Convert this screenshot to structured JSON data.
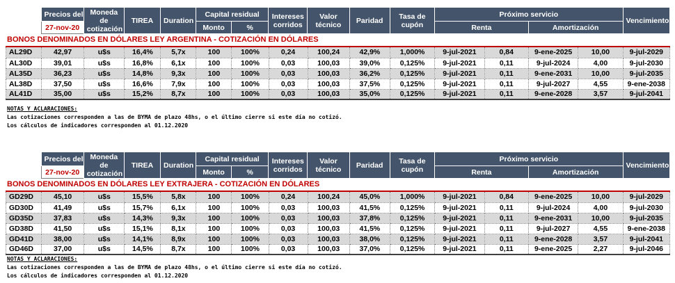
{
  "header": {
    "precios_del": "Precios del",
    "date": "27-nov-20",
    "moneda": "Moneda de cotización",
    "tirea": "TIREA",
    "duration": "Duration",
    "capital_residual": "Capital residual",
    "monto": "Monto",
    "pct": "%",
    "intereses_corridos": "Intereses corridos",
    "valor_tecnico": "Valor técnico",
    "paridad": "Paridad",
    "tasa_cupon": "Tasa de cupón",
    "proximo_servicio": "Próximo servicio",
    "renta": "Renta",
    "amortizacion": "Amortización",
    "vencimiento": "Vencimiento"
  },
  "sections": [
    {
      "title": "BONOS DENOMINADOS EN DÓLARES LEY ARGENTINA   -   COTIZACIÓN EN DÓLARES",
      "rows": [
        [
          "AL29D",
          "42,97",
          "u$s",
          "16,4%",
          "5,7x",
          "100",
          "100%",
          "0,24",
          "100,24",
          "42,9%",
          "1,000%",
          "9-jul-2021",
          "0,84",
          "9-ene-2025",
          "10,00",
          "9-jul-2029"
        ],
        [
          "AL30D",
          "39,01",
          "u$s",
          "16,8%",
          "6,1x",
          "100",
          "100%",
          "0,03",
          "100,03",
          "39,0%",
          "0,125%",
          "9-jul-2021",
          "0,11",
          "9-jul-2024",
          "4,00",
          "9-jul-2030"
        ],
        [
          "AL35D",
          "36,23",
          "u$s",
          "14,8%",
          "9,3x",
          "100",
          "100%",
          "0,03",
          "100,03",
          "36,2%",
          "0,125%",
          "9-jul-2021",
          "0,11",
          "9-ene-2031",
          "10,00",
          "9-jul-2035"
        ],
        [
          "AL38D",
          "37,50",
          "u$s",
          "16,6%",
          "7,9x",
          "100",
          "100%",
          "0,03",
          "100,03",
          "37,5%",
          "0,125%",
          "9-jul-2021",
          "0,11",
          "9-jul-2027",
          "4,55",
          "9-ene-2038"
        ],
        [
          "AL41D",
          "35,00",
          "u$s",
          "15,2%",
          "8,7x",
          "100",
          "100%",
          "0,03",
          "100,03",
          "35,0%",
          "0,125%",
          "9-jul-2021",
          "0,11",
          "9-ene-2028",
          "3,57",
          "9-jul-2041"
        ]
      ],
      "notes": {
        "heading": "NOTAS Y ACLARACIONES:",
        "line1": "Las cotizaciones corresponden a las de BYMA de plazo 48hs, o el último cierre si este día no cotizó.",
        "line2": "Los cálculos de indicadores corresponden al 01.12.2020"
      }
    },
    {
      "title": "BONOS DENOMINADOS EN DÓLARES LEY EXTRAJERA   -   COTIZACIÓN EN DÓLARES",
      "rows": [
        [
          "GD29D",
          "45,10",
          "u$s",
          "15,5%",
          "5,8x",
          "100",
          "100%",
          "0,24",
          "100,24",
          "45,0%",
          "1,000%",
          "9-jul-2021",
          "0,84",
          "9-ene-2025",
          "10,00",
          "9-jul-2029"
        ],
        [
          "GD30D",
          "41,49",
          "u$s",
          "15,7%",
          "6,1x",
          "100",
          "100%",
          "0,03",
          "100,03",
          "41,5%",
          "0,125%",
          "9-jul-2021",
          "0,11",
          "9-jul-2024",
          "4,00",
          "9-jul-2030"
        ],
        [
          "GD35D",
          "37,83",
          "u$s",
          "14,3%",
          "9,3x",
          "100",
          "100%",
          "0,03",
          "100,03",
          "37,8%",
          "0,125%",
          "9-jul-2021",
          "0,11",
          "9-ene-2031",
          "10,00",
          "9-jul-2035"
        ],
        [
          "GD38D",
          "41,50",
          "u$s",
          "15,1%",
          "8,1x",
          "100",
          "100%",
          "0,03",
          "100,03",
          "41,5%",
          "0,125%",
          "9-jul-2021",
          "0,11",
          "9-jul-2027",
          "4,55",
          "9-ene-2038"
        ],
        [
          "GD41D",
          "38,00",
          "u$s",
          "14,1%",
          "8,9x",
          "100",
          "100%",
          "0,03",
          "100,03",
          "38,0%",
          "0,125%",
          "9-jul-2021",
          "0,11",
          "9-ene-2028",
          "3,57",
          "9-jul-2041"
        ],
        [
          "GD46D",
          "37,00",
          "u$s",
          "14,5%",
          "8,7x",
          "100",
          "100%",
          "0,03",
          "100,03",
          "37,0%",
          "0,125%",
          "9-jul-2021",
          "0,11",
          "9-ene-2025",
          "2,27",
          "9-jul-2046"
        ]
      ],
      "notes": {
        "heading": "NOTAS Y ACLARACIONES:",
        "line1": "Las cotizaciones corresponden a las de BYMA de plazo 48hs, o el último cierre si este día no cotizó.",
        "line2": "Los cálculos de indicadores corresponden al 01.12.2020"
      }
    }
  ]
}
